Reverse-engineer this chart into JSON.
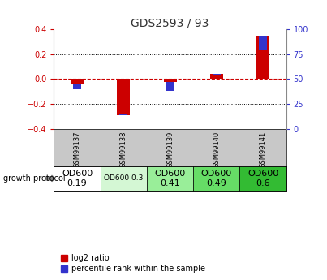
{
  "title": "GDS2593 / 93",
  "samples": [
    "GSM99137",
    "GSM99138",
    "GSM99139",
    "GSM99140",
    "GSM99141"
  ],
  "log2_ratio": [
    -0.04,
    -0.29,
    -0.025,
    0.04,
    0.35
  ],
  "percentile_rank": [
    40,
    15,
    38,
    54,
    80
  ],
  "ylim_left": [
    -0.4,
    0.4
  ],
  "ylim_right": [
    0,
    100
  ],
  "yticks_left": [
    -0.4,
    -0.2,
    0.0,
    0.2,
    0.4
  ],
  "yticks_right": [
    0,
    25,
    50,
    75,
    100
  ],
  "red_color": "#cc0000",
  "blue_color": "#3333cc",
  "zero_line_color": "#cc0000",
  "title_color": "#333333",
  "bg_color": "#ffffff",
  "label_area_bg": "#c8c8c8",
  "growth_protocol_labels": [
    "OD600\n0.19",
    "OD600 0.3",
    "OD600\n0.41",
    "OD600\n0.49",
    "OD600\n0.6"
  ],
  "growth_protocol_colors": [
    "#ffffff",
    "#d4f7d4",
    "#99ee99",
    "#66dd66",
    "#33bb33"
  ],
  "growth_protocol_font_sizes": [
    8,
    6.5,
    8,
    8,
    8
  ],
  "legend_labels": [
    "log2 ratio",
    "percentile rank within the sample"
  ]
}
